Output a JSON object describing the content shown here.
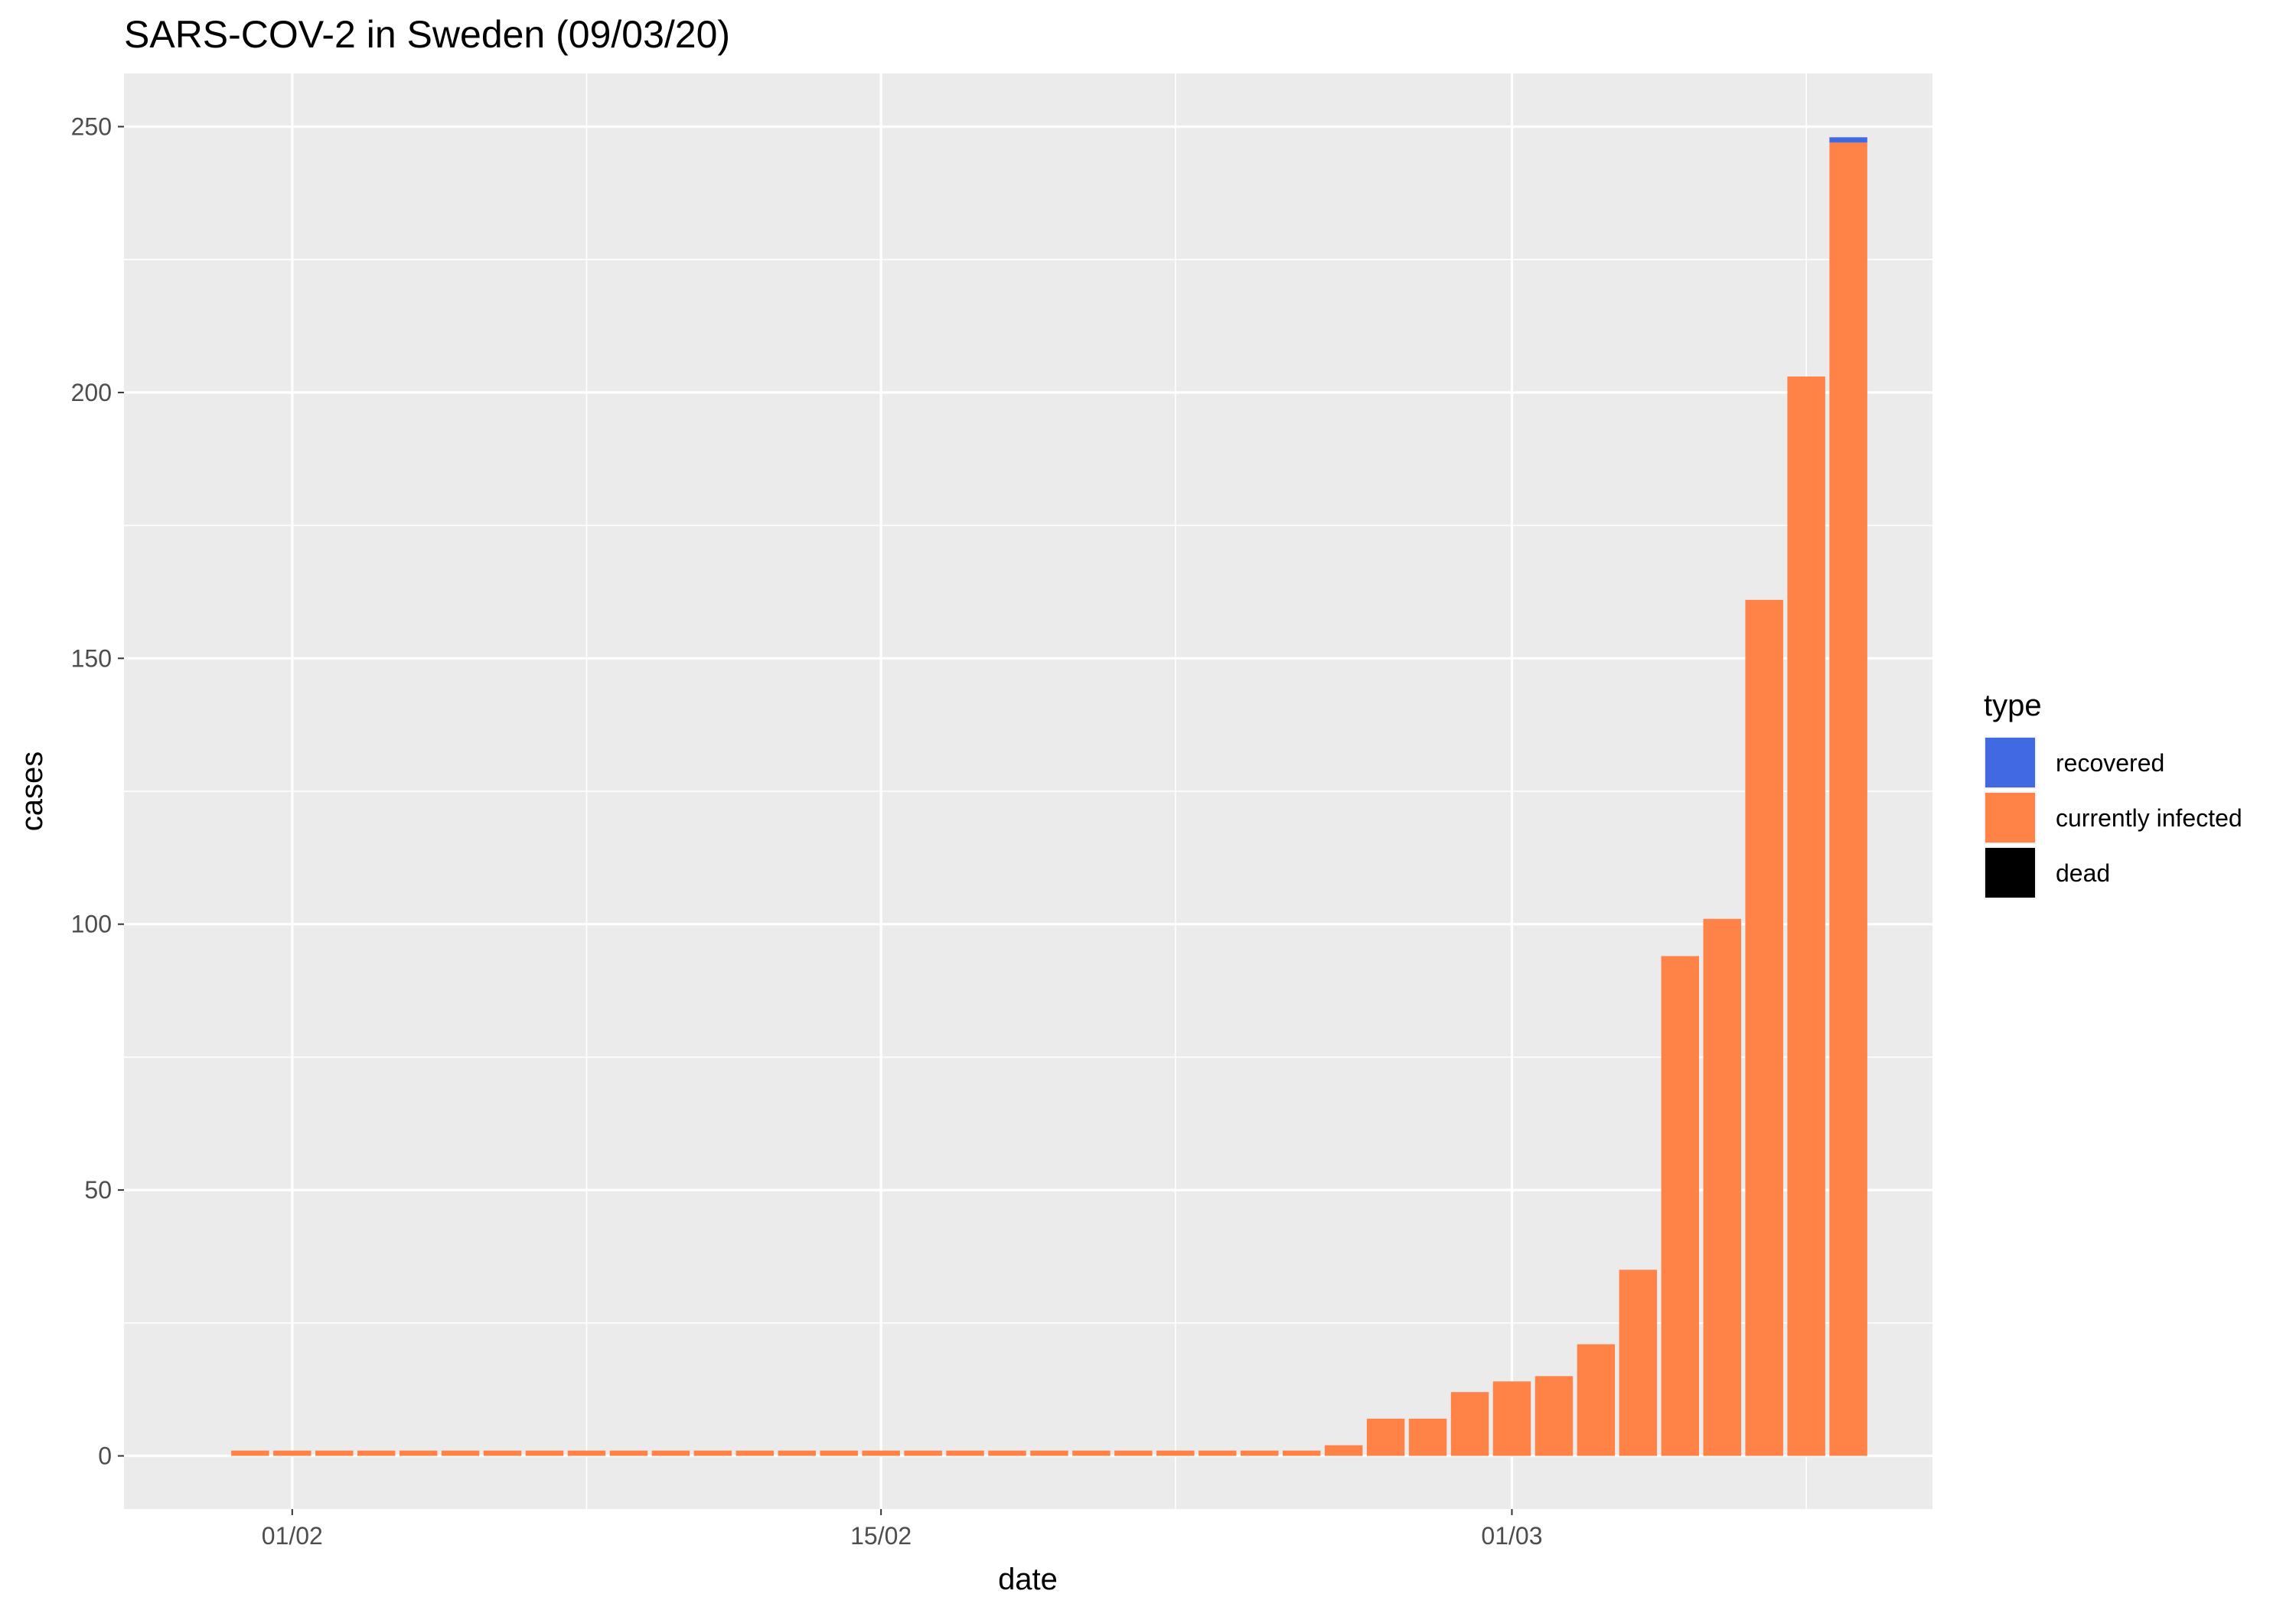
{
  "chart_data": {
    "type": "bar",
    "title": "SARS-COV-2 in Sweden (09/03/20)",
    "xlabel": "date",
    "ylabel": "cases",
    "ylim": [
      -10,
      260
    ],
    "y_ticks": [
      0,
      50,
      100,
      150,
      200,
      250
    ],
    "x_ticks": [
      {
        "date": "2020-02-01",
        "label": "01/02"
      },
      {
        "date": "2020-02-15",
        "label": "15/02"
      },
      {
        "date": "2020-03-01",
        "label": "01/03"
      }
    ],
    "x_minor_ticks": [
      "2020-02-08",
      "2020-02-22",
      "2020-03-08"
    ],
    "xlim": [
      "2020-01-28",
      "2020-03-11"
    ],
    "stacked": true,
    "grid": true,
    "legend": {
      "title": "type",
      "position": "right",
      "entries": [
        {
          "name": "recovered",
          "color": "#4169e1"
        },
        {
          "name": "currently infected",
          "color": "#ff8247"
        },
        {
          "name": "dead",
          "color": "#000000"
        }
      ]
    },
    "dates": [
      "2020-01-31",
      "2020-02-01",
      "2020-02-02",
      "2020-02-03",
      "2020-02-04",
      "2020-02-05",
      "2020-02-06",
      "2020-02-07",
      "2020-02-08",
      "2020-02-09",
      "2020-02-10",
      "2020-02-11",
      "2020-02-12",
      "2020-02-13",
      "2020-02-14",
      "2020-02-15",
      "2020-02-16",
      "2020-02-17",
      "2020-02-18",
      "2020-02-19",
      "2020-02-20",
      "2020-02-21",
      "2020-02-22",
      "2020-02-23",
      "2020-02-24",
      "2020-02-25",
      "2020-02-26",
      "2020-02-27",
      "2020-02-28",
      "2020-02-29",
      "2020-03-01",
      "2020-03-02",
      "2020-03-03",
      "2020-03-04",
      "2020-03-05",
      "2020-03-06",
      "2020-03-07",
      "2020-03-08",
      "2020-03-09"
    ],
    "series": [
      {
        "name": "recovered",
        "color": "#4169e1",
        "values": [
          0,
          0,
          0,
          0,
          0,
          0,
          0,
          0,
          0,
          0,
          0,
          0,
          0,
          0,
          0,
          0,
          0,
          0,
          0,
          0,
          0,
          0,
          0,
          0,
          0,
          0,
          0,
          0,
          0,
          0,
          0,
          0,
          0,
          0,
          0,
          0,
          0,
          0,
          1
        ]
      },
      {
        "name": "currently infected",
        "color": "#ff8247",
        "values": [
          1,
          1,
          1,
          1,
          1,
          1,
          1,
          1,
          1,
          1,
          1,
          1,
          1,
          1,
          1,
          1,
          1,
          1,
          1,
          1,
          1,
          1,
          1,
          1,
          1,
          1,
          2,
          7,
          7,
          12,
          14,
          15,
          21,
          35,
          94,
          101,
          161,
          203,
          247
        ]
      },
      {
        "name": "dead",
        "color": "#000000",
        "values": [
          0,
          0,
          0,
          0,
          0,
          0,
          0,
          0,
          0,
          0,
          0,
          0,
          0,
          0,
          0,
          0,
          0,
          0,
          0,
          0,
          0,
          0,
          0,
          0,
          0,
          0,
          0,
          0,
          0,
          0,
          0,
          0,
          0,
          0,
          0,
          0,
          0,
          0,
          0
        ]
      }
    ]
  }
}
